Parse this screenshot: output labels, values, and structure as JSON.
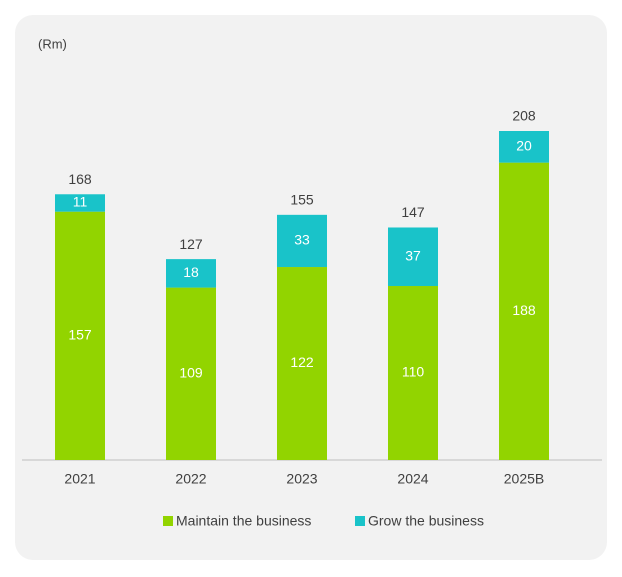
{
  "chart_data": {
    "type": "stacked_bar",
    "unit_label": "(Rm)",
    "categories": [
      "2021",
      "2022",
      "2023",
      "2024",
      "2025B"
    ],
    "series": [
      {
        "name": "Maintain the business",
        "color": "#92d400",
        "values": [
          157,
          109,
          122,
          110,
          188
        ]
      },
      {
        "name": "Grow the business",
        "color": "#19c3c9",
        "values": [
          11,
          18,
          33,
          37,
          20
        ]
      }
    ],
    "totals": [
      168,
      127,
      155,
      147,
      208
    ],
    "legend": "bottom"
  }
}
